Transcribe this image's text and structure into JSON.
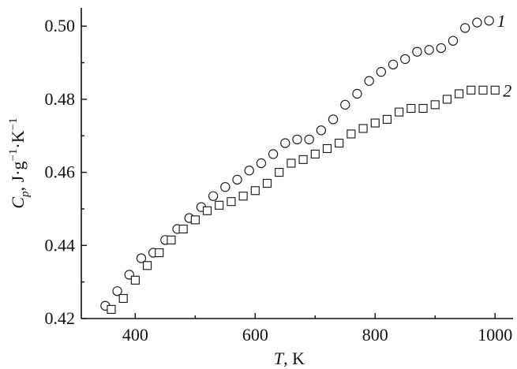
{
  "chart_data": {
    "type": "scatter",
    "xlabel": {
      "var": "T",
      "unit": ", K"
    },
    "ylabel": {
      "var": "C",
      "sub": "p",
      "unit": ", J·g",
      "sup1": "−1",
      "mid": "·K",
      "sup2": "−1"
    },
    "xlim": [
      310,
      1030
    ],
    "ylim": [
      0.42,
      0.505
    ],
    "x_ticks": [
      400,
      600,
      800,
      1000
    ],
    "y_ticks": [
      0.42,
      0.44,
      0.46,
      0.48,
      0.5
    ],
    "grid": false,
    "series": [
      {
        "name": "1",
        "marker": "circle",
        "points": [
          [
            350,
            0.4235
          ],
          [
            370,
            0.4275
          ],
          [
            390,
            0.432
          ],
          [
            410,
            0.4365
          ],
          [
            430,
            0.438
          ],
          [
            450,
            0.4415
          ],
          [
            470,
            0.4445
          ],
          [
            490,
            0.4475
          ],
          [
            510,
            0.4505
          ],
          [
            530,
            0.4535
          ],
          [
            550,
            0.456
          ],
          [
            570,
            0.458
          ],
          [
            590,
            0.4605
          ],
          [
            610,
            0.4625
          ],
          [
            630,
            0.465
          ],
          [
            650,
            0.468
          ],
          [
            670,
            0.469
          ],
          [
            690,
            0.469
          ],
          [
            710,
            0.4715
          ],
          [
            730,
            0.4745
          ],
          [
            750,
            0.4785
          ],
          [
            770,
            0.4815
          ],
          [
            790,
            0.485
          ],
          [
            810,
            0.4875
          ],
          [
            830,
            0.4895
          ],
          [
            850,
            0.491
          ],
          [
            870,
            0.493
          ],
          [
            890,
            0.4935
          ],
          [
            910,
            0.494
          ],
          [
            930,
            0.496
          ],
          [
            950,
            0.4995
          ],
          [
            970,
            0.501
          ],
          [
            990,
            0.5015
          ]
        ]
      },
      {
        "name": "2",
        "marker": "square",
        "points": [
          [
            360,
            0.4225
          ],
          [
            380,
            0.4255
          ],
          [
            400,
            0.4305
          ],
          [
            420,
            0.4345
          ],
          [
            440,
            0.438
          ],
          [
            460,
            0.4415
          ],
          [
            480,
            0.4445
          ],
          [
            500,
            0.447
          ],
          [
            520,
            0.4495
          ],
          [
            540,
            0.451
          ],
          [
            560,
            0.452
          ],
          [
            580,
            0.4535
          ],
          [
            600,
            0.455
          ],
          [
            620,
            0.457
          ],
          [
            640,
            0.46
          ],
          [
            660,
            0.4625
          ],
          [
            680,
            0.4635
          ],
          [
            700,
            0.465
          ],
          [
            720,
            0.4665
          ],
          [
            740,
            0.468
          ],
          [
            760,
            0.4705
          ],
          [
            780,
            0.472
          ],
          [
            800,
            0.4735
          ],
          [
            820,
            0.4745
          ],
          [
            840,
            0.4765
          ],
          [
            860,
            0.4775
          ],
          [
            880,
            0.4775
          ],
          [
            900,
            0.4785
          ],
          [
            920,
            0.48
          ],
          [
            940,
            0.4815
          ],
          [
            960,
            0.4825
          ],
          [
            980,
            0.4825
          ],
          [
            1000,
            0.4825
          ]
        ]
      }
    ]
  }
}
